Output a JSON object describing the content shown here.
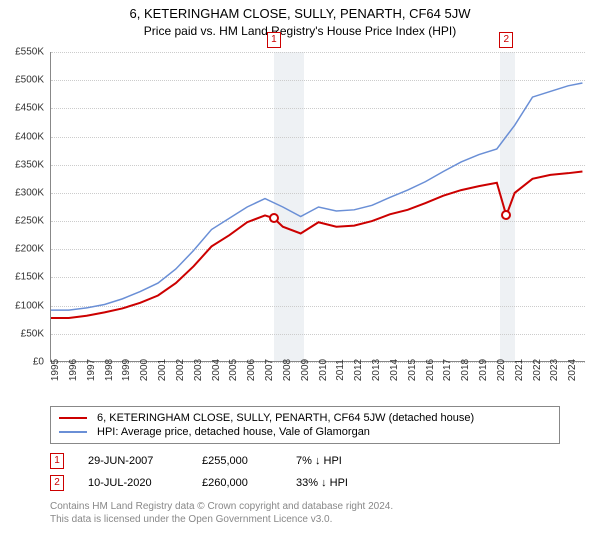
{
  "title": "6, KETERINGHAM CLOSE, SULLY, PENARTH, CF64 5JW",
  "subtitle": "Price paid vs. HM Land Registry's House Price Index (HPI)",
  "chart": {
    "type": "line",
    "background_color": "#ffffff",
    "shade_color": "#eef1f4",
    "grid_color": "#cccccc",
    "ylim": [
      0,
      550000
    ],
    "ytick_step": 50000,
    "yticks": [
      "£0",
      "£50K",
      "£100K",
      "£150K",
      "£200K",
      "£250K",
      "£300K",
      "£350K",
      "£400K",
      "£450K",
      "£500K",
      "£550K"
    ],
    "xlim": [
      1995,
      2025
    ],
    "xticks": [
      1995,
      1996,
      1997,
      1998,
      1999,
      2000,
      2001,
      2002,
      2003,
      2004,
      2005,
      2006,
      2007,
      2008,
      2009,
      2010,
      2011,
      2012,
      2013,
      2014,
      2015,
      2016,
      2017,
      2018,
      2019,
      2020,
      2021,
      2022,
      2023,
      2024
    ],
    "label_fontsize": 10,
    "shade_ranges": [
      [
        2007.5,
        2009.2
      ],
      [
        2020.2,
        2021.0
      ]
    ],
    "series": [
      {
        "name": "property",
        "color": "#cc0000",
        "line_width": 2,
        "points": [
          [
            1995,
            78000
          ],
          [
            1996,
            78000
          ],
          [
            1997,
            82000
          ],
          [
            1998,
            88000
          ],
          [
            1999,
            95000
          ],
          [
            2000,
            105000
          ],
          [
            2001,
            118000
          ],
          [
            2002,
            140000
          ],
          [
            2003,
            170000
          ],
          [
            2004,
            205000
          ],
          [
            2005,
            225000
          ],
          [
            2006,
            248000
          ],
          [
            2007,
            260000
          ],
          [
            2007.5,
            255000
          ],
          [
            2008,
            240000
          ],
          [
            2009,
            228000
          ],
          [
            2010,
            248000
          ],
          [
            2011,
            240000
          ],
          [
            2012,
            242000
          ],
          [
            2013,
            250000
          ],
          [
            2014,
            262000
          ],
          [
            2015,
            270000
          ],
          [
            2016,
            282000
          ],
          [
            2017,
            295000
          ],
          [
            2018,
            305000
          ],
          [
            2019,
            312000
          ],
          [
            2020,
            318000
          ],
          [
            2020.53,
            260000
          ],
          [
            2021,
            300000
          ],
          [
            2022,
            325000
          ],
          [
            2023,
            332000
          ],
          [
            2024,
            335000
          ],
          [
            2024.8,
            338000
          ]
        ]
      },
      {
        "name": "hpi",
        "color": "#6a8fd6",
        "line_width": 1.5,
        "points": [
          [
            1995,
            92000
          ],
          [
            1996,
            92000
          ],
          [
            1997,
            96000
          ],
          [
            1998,
            102000
          ],
          [
            1999,
            112000
          ],
          [
            2000,
            125000
          ],
          [
            2001,
            140000
          ],
          [
            2002,
            165000
          ],
          [
            2003,
            198000
          ],
          [
            2004,
            235000
          ],
          [
            2005,
            255000
          ],
          [
            2006,
            275000
          ],
          [
            2007,
            290000
          ],
          [
            2008,
            275000
          ],
          [
            2009,
            258000
          ],
          [
            2010,
            275000
          ],
          [
            2011,
            268000
          ],
          [
            2012,
            270000
          ],
          [
            2013,
            278000
          ],
          [
            2014,
            292000
          ],
          [
            2015,
            305000
          ],
          [
            2016,
            320000
          ],
          [
            2017,
            338000
          ],
          [
            2018,
            355000
          ],
          [
            2019,
            368000
          ],
          [
            2020,
            378000
          ],
          [
            2021,
            420000
          ],
          [
            2022,
            470000
          ],
          [
            2023,
            480000
          ],
          [
            2024,
            490000
          ],
          [
            2024.8,
            495000
          ]
        ]
      }
    ],
    "sale_markers": [
      {
        "num": "1",
        "x": 2007.5,
        "y": 255000
      },
      {
        "num": "2",
        "x": 2020.53,
        "y": 260000
      }
    ]
  },
  "legend": [
    {
      "color": "#cc0000",
      "label": "6, KETERINGHAM CLOSE, SULLY, PENARTH, CF64 5JW (detached house)"
    },
    {
      "color": "#6a8fd6",
      "label": "HPI: Average price, detached house, Vale of Glamorgan"
    }
  ],
  "sales": [
    {
      "num": "1",
      "date": "29-JUN-2007",
      "price": "£255,000",
      "diff": "7% ↓ HPI"
    },
    {
      "num": "2",
      "date": "10-JUL-2020",
      "price": "£260,000",
      "diff": "33% ↓ HPI"
    }
  ],
  "footer": {
    "line1": "Contains HM Land Registry data © Crown copyright and database right 2024.",
    "line2": "This data is licensed under the Open Government Licence v3.0."
  }
}
